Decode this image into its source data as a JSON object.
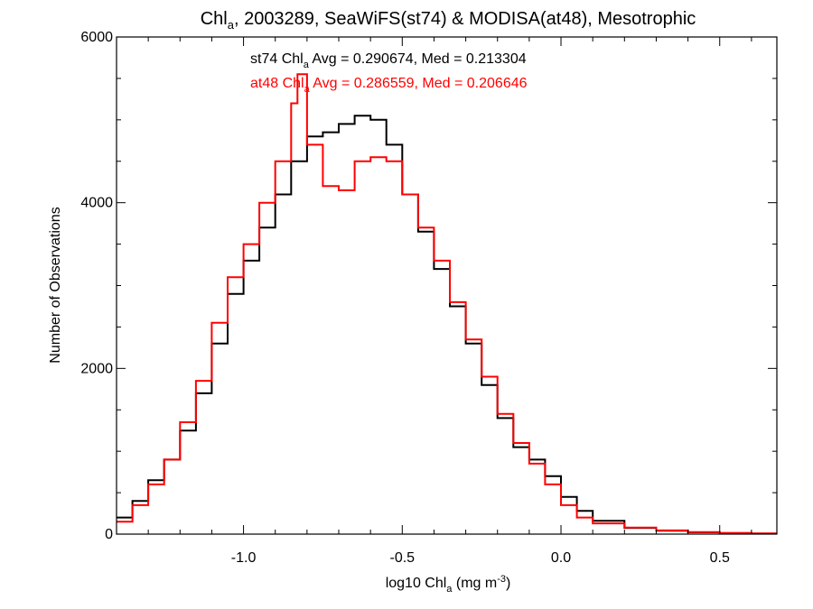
{
  "chart_data": {
    "type": "line",
    "style": "step-histogram",
    "title": {
      "base": "Chl",
      "sub": "a",
      "rest": ", 2003289, SeaWiFS(st74) & MODISA(at48), Mesotrophic"
    },
    "xlabel": {
      "base": "log10 Chl",
      "sub": "a",
      "mid": " (mg m",
      "sup": "-3",
      "end": ")"
    },
    "ylabel": "Number of Observations",
    "xlim": [
      -1.4,
      0.68
    ],
    "ylim": [
      0,
      6000
    ],
    "x_ticks": [
      -1.0,
      -0.5,
      0.0,
      0.5
    ],
    "x_tick_labels": [
      "-1.0",
      "-0.5",
      "0.0",
      "0.5"
    ],
    "y_ticks": [
      0,
      2000,
      4000,
      6000
    ],
    "y_tick_labels": [
      "0",
      "2000",
      "4000",
      "6000"
    ],
    "annotations": [
      {
        "base": "st74 Chl",
        "sub": "a",
        "rest": " Avg = 0.290674, Med = 0.213304",
        "color": "#000000"
      },
      {
        "base": "at48 Chl",
        "sub": "a",
        "rest": " Avg = 0.286559, Med = 0.206646",
        "color": "#ff0000"
      }
    ],
    "series": [
      {
        "color": "#000000",
        "x": [
          -1.4,
          -1.35,
          -1.3,
          -1.25,
          -1.2,
          -1.15,
          -1.1,
          -1.05,
          -1.0,
          -0.95,
          -0.9,
          -0.85,
          -0.8,
          -0.75,
          -0.7,
          -0.65,
          -0.6,
          -0.55,
          -0.5,
          -0.45,
          -0.4,
          -0.35,
          -0.3,
          -0.25,
          -0.2,
          -0.15,
          -0.1,
          -0.05,
          0.0,
          0.05,
          0.1,
          0.2,
          0.3,
          0.4,
          0.5,
          0.6,
          0.68
        ],
        "y": [
          200,
          400,
          650,
          900,
          1250,
          1700,
          2300,
          2900,
          3300,
          3700,
          4100,
          4500,
          4800,
          4850,
          4950,
          5050,
          5000,
          4700,
          4100,
          3650,
          3200,
          2750,
          2300,
          1800,
          1400,
          1050,
          900,
          700,
          450,
          280,
          160,
          75,
          40,
          22,
          12,
          6,
          2
        ]
      },
      {
        "color": "#ff0000",
        "x": [
          -1.4,
          -1.35,
          -1.3,
          -1.25,
          -1.2,
          -1.15,
          -1.1,
          -1.05,
          -1.0,
          -0.95,
          -0.9,
          -0.85,
          -0.83,
          -0.8,
          -0.75,
          -0.7,
          -0.65,
          -0.6,
          -0.55,
          -0.5,
          -0.45,
          -0.4,
          -0.35,
          -0.3,
          -0.25,
          -0.2,
          -0.15,
          -0.1,
          -0.05,
          0.0,
          0.05,
          0.1,
          0.2,
          0.3,
          0.4,
          0.5,
          0.6,
          0.68
        ],
        "y": [
          150,
          350,
          600,
          900,
          1350,
          1850,
          2550,
          3100,
          3500,
          4000,
          4500,
          5200,
          5550,
          4700,
          4200,
          4150,
          4500,
          4550,
          4500,
          4100,
          3700,
          3300,
          2800,
          2350,
          1900,
          1450,
          1100,
          850,
          600,
          350,
          200,
          130,
          80,
          45,
          25,
          14,
          8,
          3
        ]
      }
    ]
  }
}
